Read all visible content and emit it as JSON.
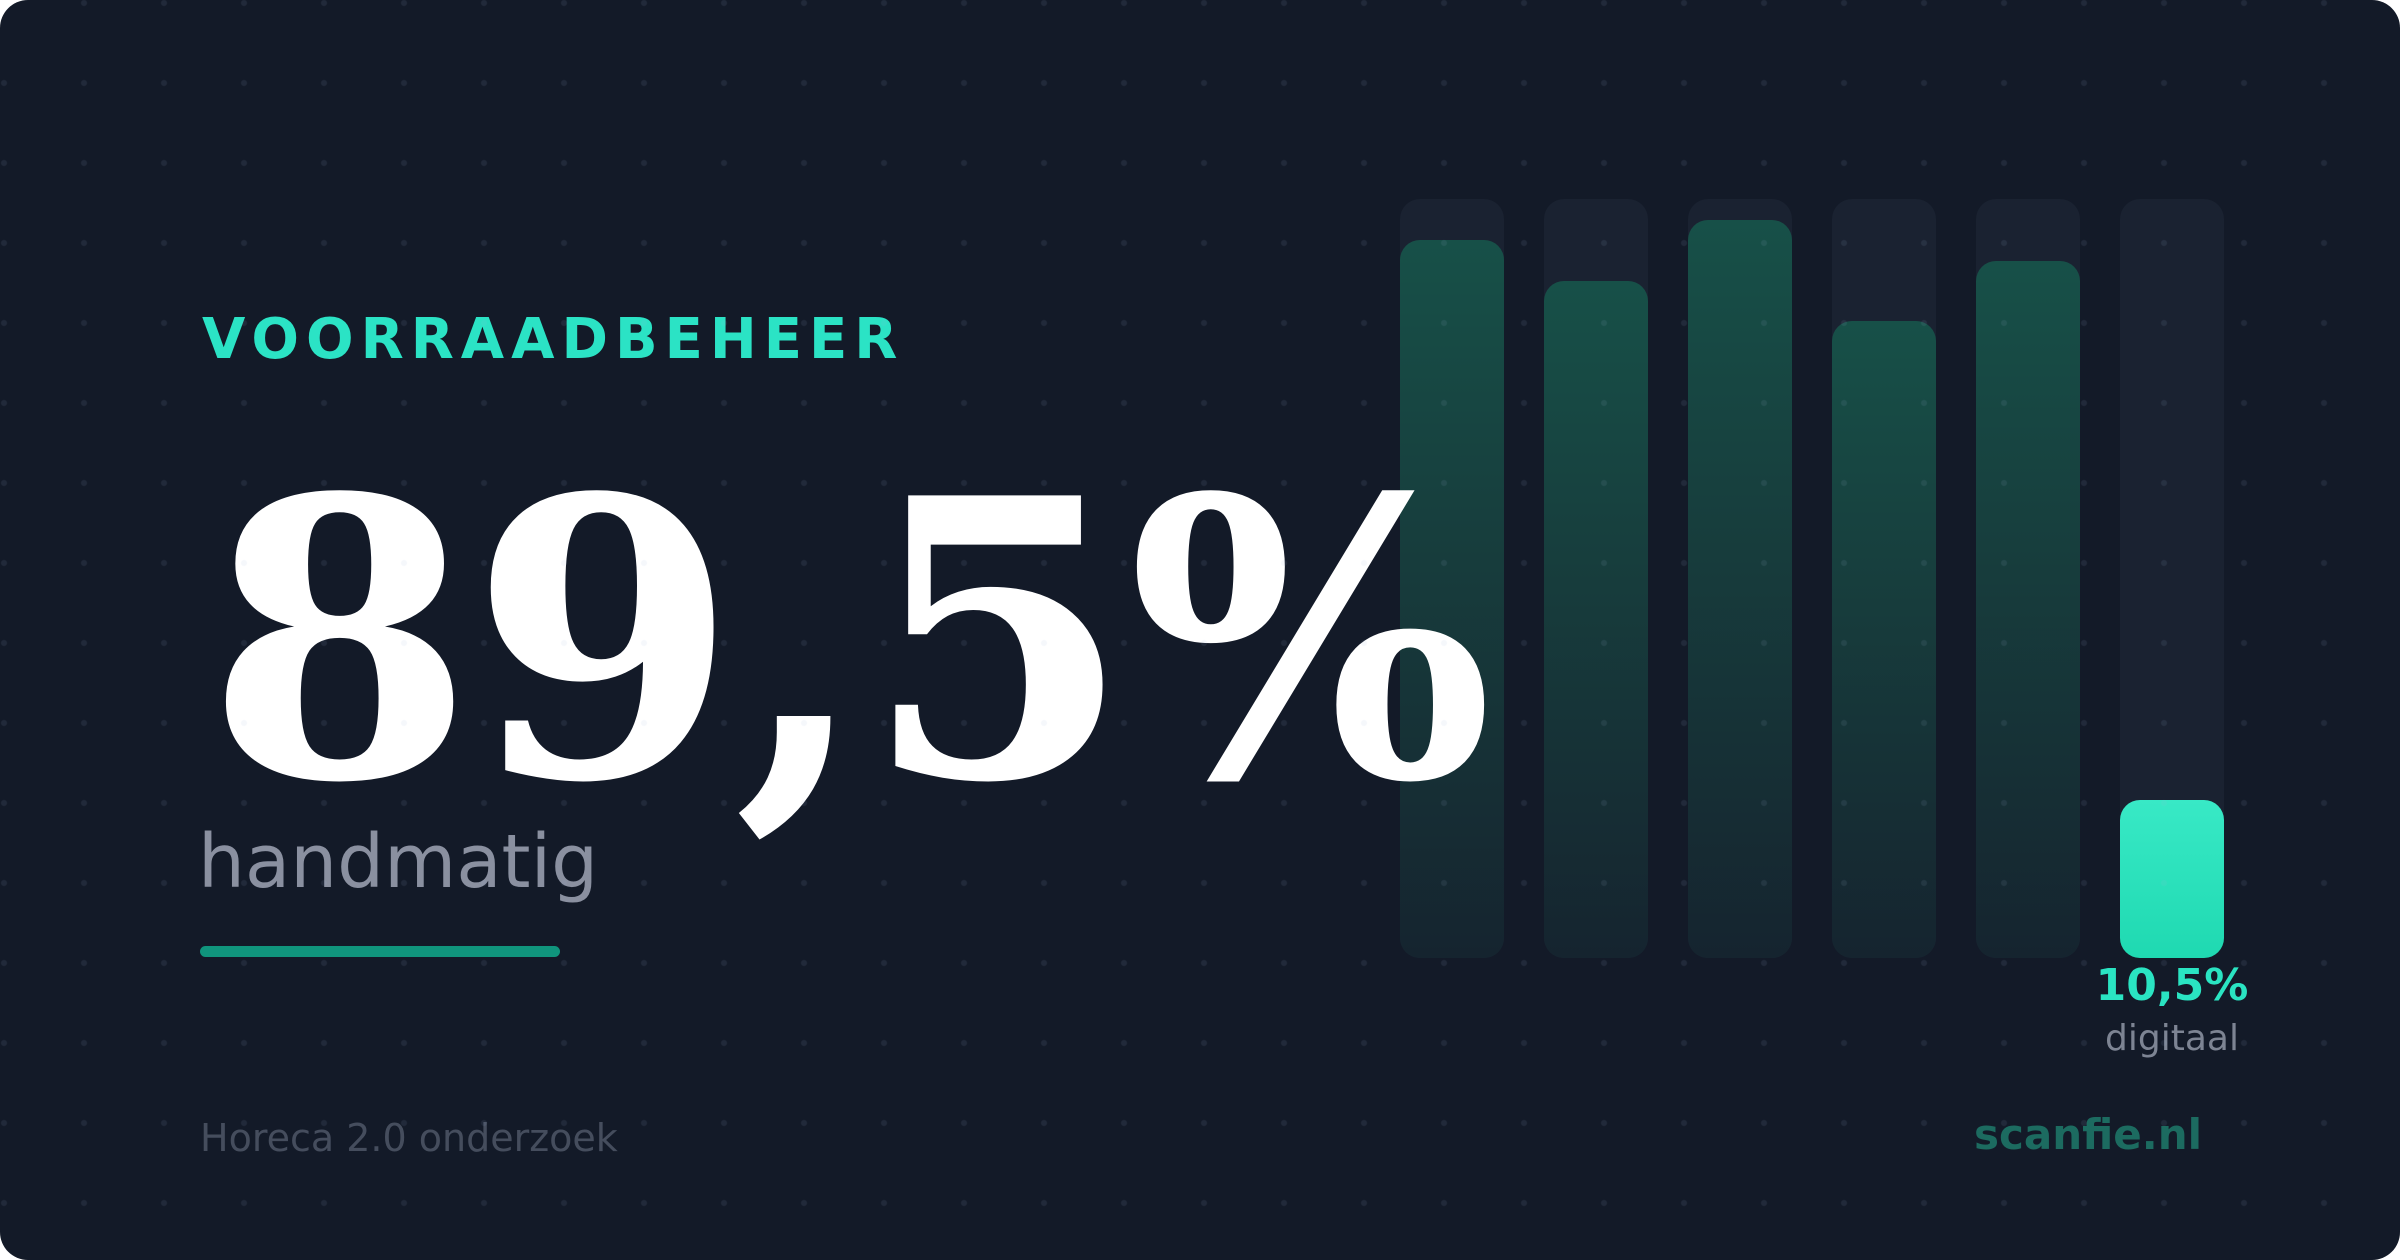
{
  "colors": {
    "background": "#131a28",
    "accent": "#2be3c5",
    "bar_track": "#1a2231",
    "bar_fill_top": "#175048",
    "bar_fill_bottom": "#15242f",
    "highlight_bar_top": "#38e9c6",
    "highlight_bar_bottom": "#1fd9b1",
    "underline": "#10957d",
    "stat_text": "#ffffff",
    "stat_label_text": "#8a90a0",
    "footer_source_text": "#454d5d",
    "brand_text": "#1c6b60",
    "caption_sub_text": "#7d8493"
  },
  "header": {
    "title": "VOORRAADBEHEER"
  },
  "stat": {
    "value": "89,5%",
    "label": "handmatig"
  },
  "footer": {
    "source": "Horeca 2.0 onderzoek",
    "brand": "scanfie.nl"
  },
  "chart_data": {
    "type": "bar",
    "orientation": "vertical",
    "axes": "none",
    "legend": "none",
    "headline": {
      "value": "89,5%",
      "category": "handmatig"
    },
    "highlight": {
      "value_label": "10,5%",
      "category_label": "digitaal"
    },
    "bars": [
      {
        "height_pct": 94.6,
        "label": null,
        "highlighted": false
      },
      {
        "height_pct": 89.2,
        "label": null,
        "highlighted": false
      },
      {
        "height_pct": 97.2,
        "label": null,
        "highlighted": false
      },
      {
        "height_pct": 83.9,
        "label": null,
        "highlighted": false
      },
      {
        "height_pct": 91.8,
        "label": null,
        "highlighted": false
      },
      {
        "height_pct": 20.8,
        "label": "10,5%",
        "sublabel": "digitaal",
        "highlighted": true
      }
    ]
  }
}
